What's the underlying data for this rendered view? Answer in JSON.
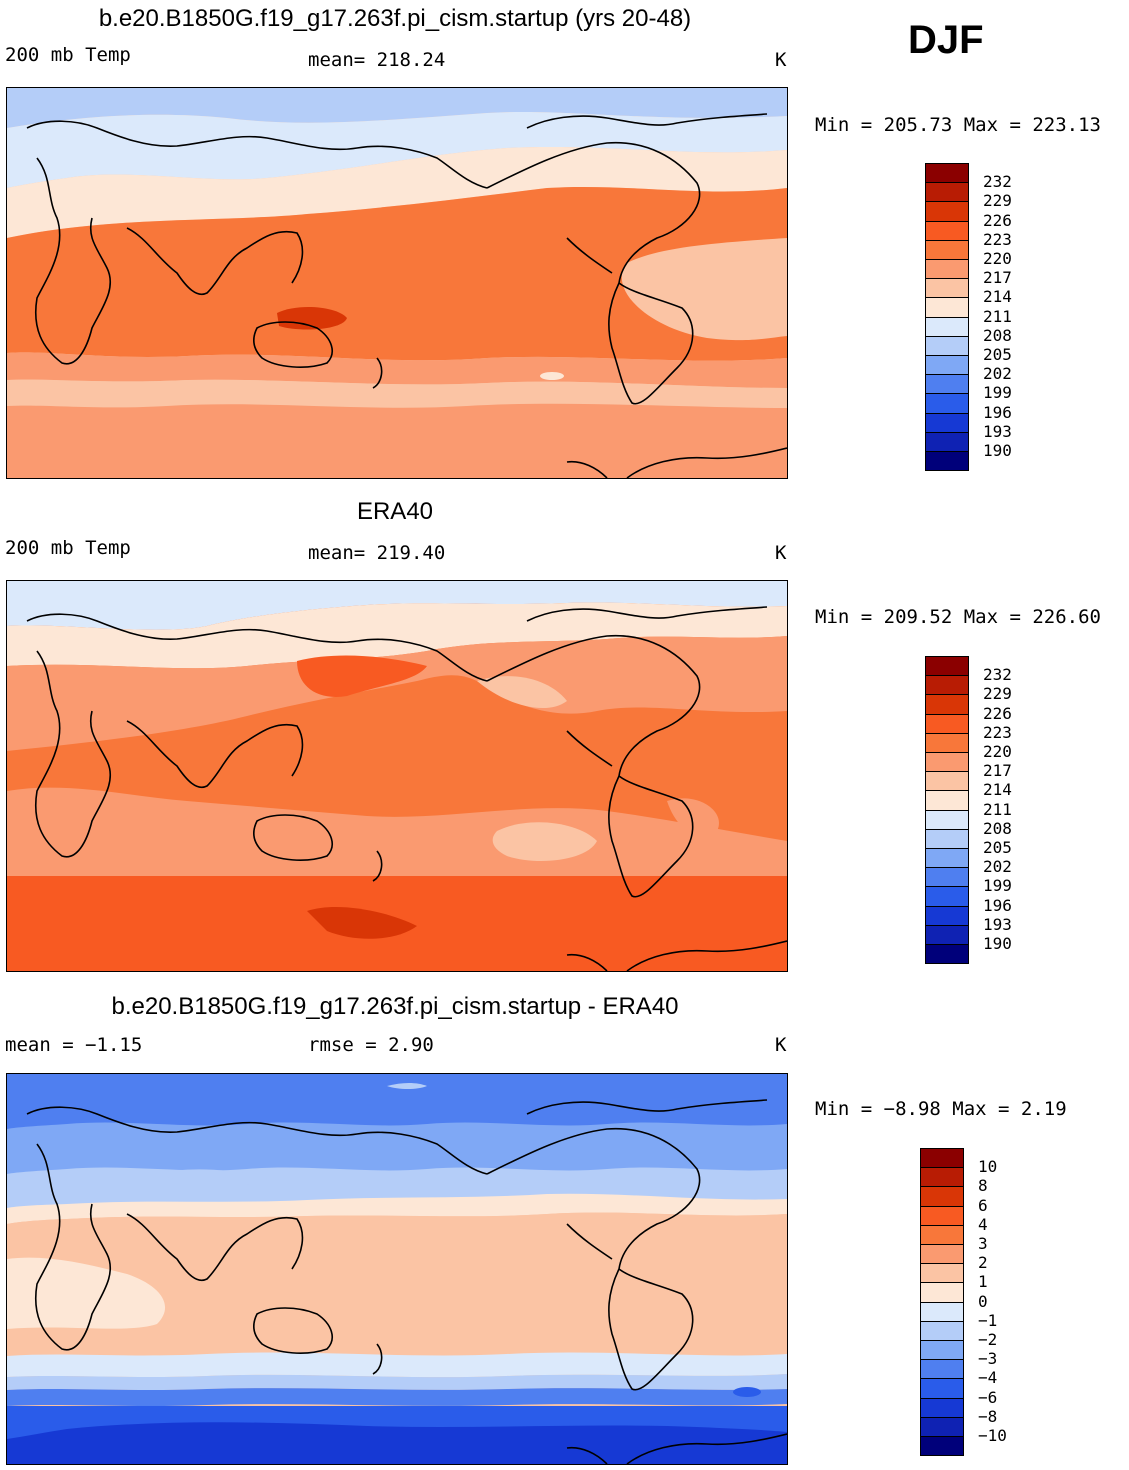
{
  "season": "DJF",
  "panels": [
    {
      "title": "b.e20.B1850G.f19_g17.263f.pi_cism.startup (yrs 20-48)",
      "left_label": "200 mb Temp",
      "center_label": "mean=  218.24",
      "units": "K",
      "minmax": "Min = 205.73 Max = 223.13",
      "colorbar_levels": [
        "232",
        "229",
        "226",
        "223",
        "220",
        "217",
        "214",
        "211",
        "208",
        "205",
        "202",
        "199",
        "196",
        "193",
        "190"
      ],
      "colorbar_colors": [
        "#8b0000",
        "#b81c04",
        "#d93606",
        "#f85a22",
        "#f8773a",
        "#fa9a70",
        "#fbc4a4",
        "#fde7d6",
        "#dbe9fb",
        "#b4cdf8",
        "#7fa8f5",
        "#4f7ff0",
        "#2a5cea",
        "#1639d4",
        "#0f22b3",
        "#00007a"
      ]
    },
    {
      "title": "ERA40",
      "left_label": "200 mb Temp",
      "center_label": "mean=  219.40",
      "units": "K",
      "minmax": "Min = 209.52 Max = 226.60",
      "colorbar_levels": [
        "232",
        "229",
        "226",
        "223",
        "220",
        "217",
        "214",
        "211",
        "208",
        "205",
        "202",
        "199",
        "196",
        "193",
        "190"
      ],
      "colorbar_colors": [
        "#8b0000",
        "#b81c04",
        "#d93606",
        "#f85a22",
        "#f8773a",
        "#fa9a70",
        "#fbc4a4",
        "#fde7d6",
        "#dbe9fb",
        "#b4cdf8",
        "#7fa8f5",
        "#4f7ff0",
        "#2a5cea",
        "#1639d4",
        "#0f22b3",
        "#00007a"
      ]
    },
    {
      "title": "b.e20.B1850G.f19_g17.263f.pi_cism.startup - ERA40",
      "left_label": "mean =   −1.15",
      "center_label": "rmse =     2.90",
      "units": "K",
      "minmax": "Min =   −8.98 Max =    2.19",
      "colorbar_levels": [
        "10",
        "8",
        "6",
        "4",
        "3",
        "2",
        "1",
        "0",
        "−1",
        "−2",
        "−3",
        "−4",
        "−6",
        "−8",
        "−10"
      ],
      "colorbar_colors": [
        "#8b0000",
        "#b81c04",
        "#d93606",
        "#f85a22",
        "#f8773a",
        "#fa9a70",
        "#fbc4a4",
        "#fde7d6",
        "#dbe9fb",
        "#b4cdf8",
        "#7fa8f5",
        "#4f7ff0",
        "#2a5cea",
        "#1639d4",
        "#0f22b3",
        "#00007a"
      ]
    }
  ]
}
